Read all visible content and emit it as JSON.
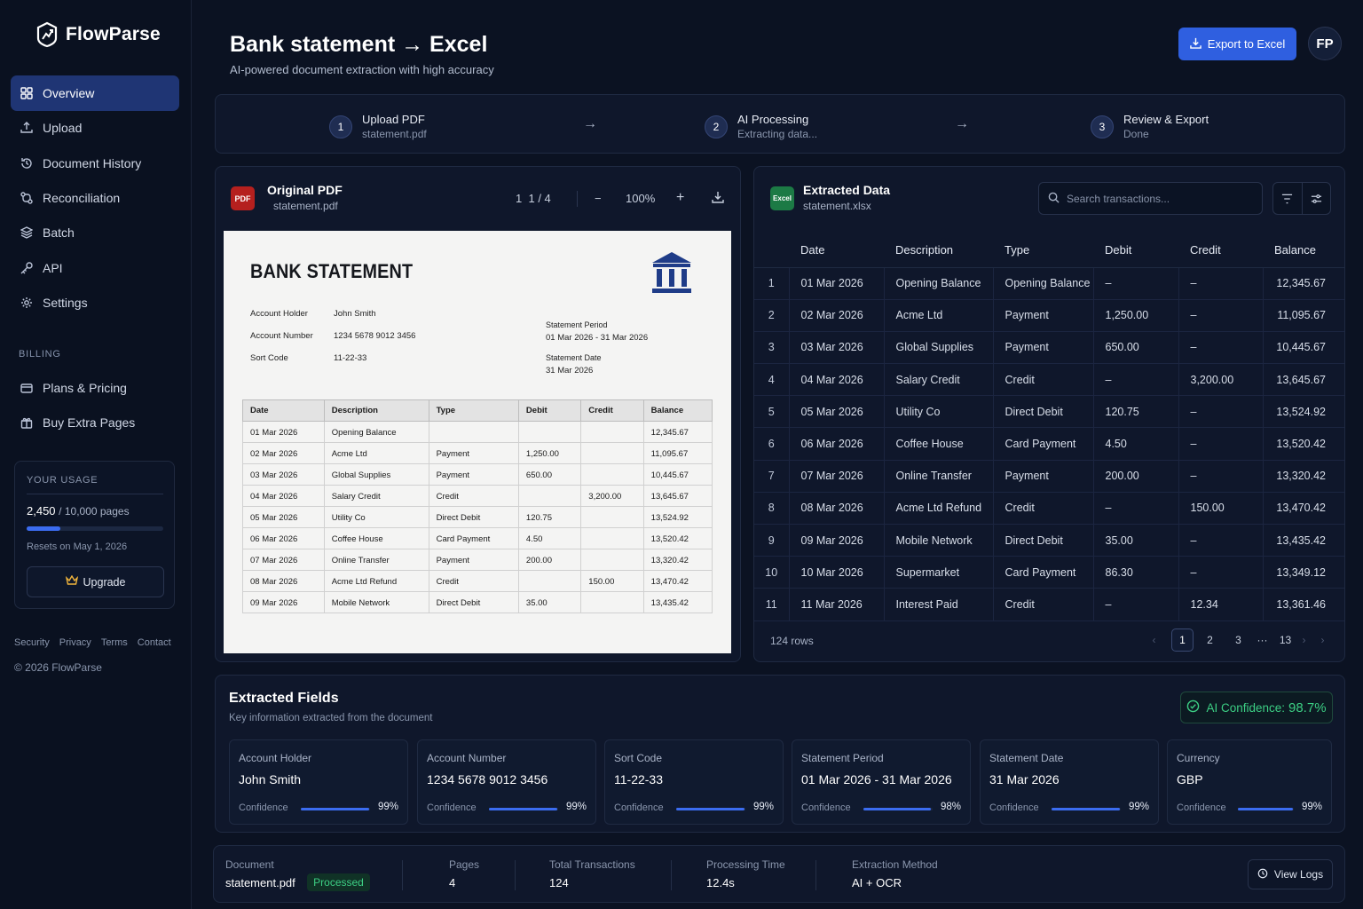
{
  "brand": {
    "name": "FlowParse"
  },
  "nav": {
    "items": [
      {
        "label": "Overview",
        "icon": "grid-icon",
        "active": true
      },
      {
        "label": "Upload",
        "icon": "upload-icon"
      },
      {
        "label": "Document History",
        "icon": "history-icon"
      },
      {
        "label": "Reconciliation",
        "icon": "reconcile-icon"
      },
      {
        "label": "Batch",
        "icon": "layers-icon"
      },
      {
        "label": "API",
        "icon": "key-icon"
      },
      {
        "label": "Settings",
        "icon": "gear-icon"
      }
    ]
  },
  "billing": {
    "title": "BILLING",
    "items": [
      {
        "label": "Plans & Pricing",
        "icon": "card-icon"
      },
      {
        "label": "Buy Extra Pages",
        "icon": "gift-icon"
      }
    ]
  },
  "usage": {
    "title": "YOUR USAGE",
    "used": "2,450",
    "total": "/ 10,000 pages",
    "fraction": 0.245,
    "reset": "Resets on May 1, 2026",
    "upgrade_label": "Upgrade"
  },
  "footer": {
    "links": [
      "Security",
      "Privacy",
      "Terms",
      "Contact"
    ],
    "copyright": "© 2026 FlowParse"
  },
  "header": {
    "title": "Bank statement → Excel",
    "subtitle": "AI-powered document extraction with high accuracy",
    "export_label": "Export to Excel",
    "avatar": "FP"
  },
  "steps": [
    {
      "num": "1",
      "title": "Upload PDF",
      "sub": "statement.pdf"
    },
    {
      "num": "2",
      "title": "AI Processing",
      "sub": "Extracting data..."
    },
    {
      "num": "3",
      "title": "Review & Export",
      "sub": "Done"
    }
  ],
  "pdf": {
    "badge": "PDF",
    "title": "Original PDF",
    "file": "statement.pdf",
    "page": "1",
    "pages": "/ 4",
    "page_cursor": "1",
    "zoom": "100%",
    "minus": "−",
    "plus": "+"
  },
  "statement": {
    "title": "BANK STATEMENT",
    "holder_label": "Account Holder",
    "holder": "John Smith",
    "number_label": "Account Number",
    "number": "1234 5678 9012 3456",
    "sort_label": "Sort Code",
    "sort": "11-22-33",
    "period_label": "Statement Period",
    "period": "01 Mar 2026 - 31 Mar 2026",
    "date_label": "Statement Date",
    "date": "31 Mar 2026",
    "columns": [
      "Date",
      "Description",
      "Type",
      "Debit",
      "Credit",
      "Balance"
    ],
    "rows": [
      [
        "01 Mar 2026",
        "Opening Balance",
        "",
        "",
        "",
        "12,345.67"
      ],
      [
        "02 Mar 2026",
        "Acme Ltd",
        "Payment",
        "1,250.00",
        "",
        "11,095.67"
      ],
      [
        "03 Mar 2026",
        "Global Supplies",
        "Payment",
        "650.00",
        "",
        "10,445.67"
      ],
      [
        "04 Mar 2026",
        "Salary Credit",
        "Credit",
        "",
        "3,200.00",
        "13,645.67"
      ],
      [
        "05 Mar 2026",
        "Utility Co",
        "Direct Debit",
        "120.75",
        "",
        "13,524.92"
      ],
      [
        "06 Mar 2026",
        "Coffee House",
        "Card Payment",
        "4.50",
        "",
        "13,520.42"
      ],
      [
        "07 Mar 2026",
        "Online Transfer",
        "Payment",
        "200.00",
        "",
        "13,320.42"
      ],
      [
        "08 Mar 2026",
        "Acme Ltd Refund",
        "Credit",
        "",
        "150.00",
        "13,470.42"
      ],
      [
        "09 Mar 2026",
        "Mobile Network",
        "Direct Debit",
        "35.00",
        "",
        "13,435.42"
      ]
    ]
  },
  "extracted": {
    "badge": "Excel",
    "title": "Extracted Data",
    "file": "statement.xlsx",
    "search_placeholder": "Search transactions...",
    "columns": [
      "",
      "Date",
      "Description",
      "Type",
      "Debit",
      "Credit",
      "Balance"
    ],
    "rows": [
      [
        "1",
        "01 Mar 2026",
        "Opening Balance",
        "Opening Balance",
        "–",
        "–",
        "12,345.67"
      ],
      [
        "2",
        "02 Mar 2026",
        "Acme Ltd",
        "Payment",
        "1,250.00",
        "–",
        "11,095.67"
      ],
      [
        "3",
        "03 Mar 2026",
        "Global Supplies",
        "Payment",
        "650.00",
        "–",
        "10,445.67"
      ],
      [
        "4",
        "04 Mar 2026",
        "Salary Credit",
        "Credit",
        "–",
        "3,200.00",
        "13,645.67"
      ],
      [
        "5",
        "05 Mar 2026",
        "Utility Co",
        "Direct Debit",
        "120.75",
        "–",
        "13,524.92"
      ],
      [
        "6",
        "06 Mar 2026",
        "Coffee House",
        "Card Payment",
        "4.50",
        "–",
        "13,520.42"
      ],
      [
        "7",
        "07 Mar 2026",
        "Online Transfer",
        "Payment",
        "200.00",
        "–",
        "13,320.42"
      ],
      [
        "8",
        "08 Mar 2026",
        "Acme Ltd Refund",
        "Credit",
        "–",
        "150.00",
        "13,470.42"
      ],
      [
        "9",
        "09 Mar 2026",
        "Mobile Network",
        "Direct Debit",
        "35.00",
        "–",
        "13,435.42"
      ],
      [
        "10",
        "10 Mar 2026",
        "Supermarket",
        "Card Payment",
        "86.30",
        "–",
        "13,349.12"
      ],
      [
        "11",
        "11 Mar 2026",
        "Interest Paid",
        "Credit",
        "–",
        "12.34",
        "13,361.46"
      ]
    ],
    "row_count": "124 rows",
    "pages": [
      "1",
      "2",
      "3",
      "···",
      "13"
    ]
  },
  "fields": {
    "title": "Extracted Fields",
    "subtitle": "Key information extracted from the document",
    "ai_label": "AI Confidence:",
    "ai_value": "98.7%",
    "conf_label": "Confidence",
    "items": [
      {
        "label": "Account Holder",
        "value": "John Smith",
        "pct": "99%",
        "level": 0.99
      },
      {
        "label": "Account Number",
        "value": "1234 5678 9012 3456",
        "pct": "99%",
        "level": 0.99
      },
      {
        "label": "Sort Code",
        "value": "11-22-33",
        "pct": "99%",
        "level": 0.99
      },
      {
        "label": "Statement Period",
        "value": "01 Mar 2026 - 31 Mar 2026",
        "pct": "98%",
        "level": 0.98
      },
      {
        "label": "Statement Date",
        "value": "31 Mar 2026",
        "pct": "99%",
        "level": 0.99
      },
      {
        "label": "Currency",
        "value": "GBP",
        "pct": "99%",
        "level": 0.99
      }
    ]
  },
  "status": {
    "doc_label": "Document",
    "doc": "statement.pdf",
    "state": "Processed",
    "pages_label": "Pages",
    "pages": "4",
    "tx_label": "Total Transactions",
    "tx": "124",
    "time_label": "Processing Time",
    "time": "12.4s",
    "method_label": "Extraction Method",
    "method": "AI + OCR",
    "logs_label": "View Logs"
  },
  "colors": {
    "accent": "#2f5fe0",
    "success": "#3ccf84",
    "pdf": "#b5201e",
    "excel": "#1c7a45"
  }
}
